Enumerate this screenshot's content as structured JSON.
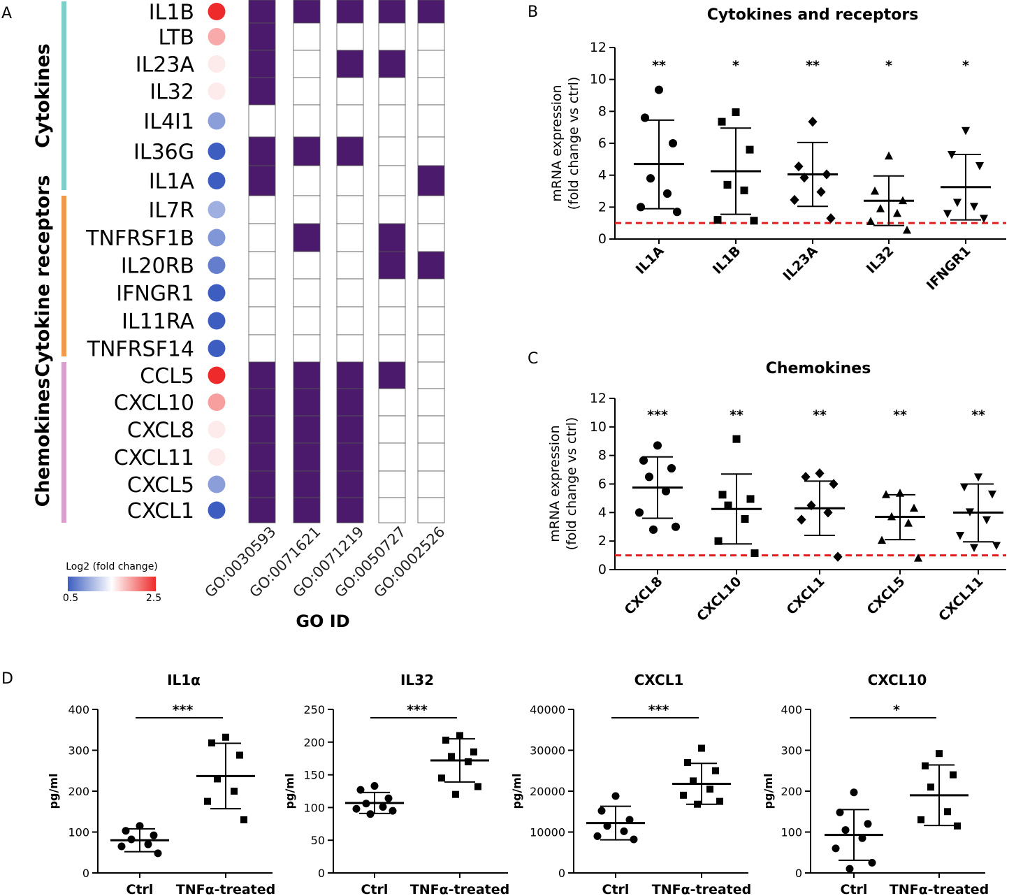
{
  "colors": {
    "purple": "#4b1a6c",
    "cellBorder": "#555555",
    "cytokines": "#7ecfc7",
    "receptors": "#ef9a4e",
    "chemokines": "#da9fcc",
    "low": "#3d5ec0",
    "mid": "#ffffff",
    "high": "#ee2a2a",
    "refline": "#e02020"
  },
  "panelA": {
    "label": "A",
    "categories": [
      {
        "name": "Cytokines",
        "genes": 7
      },
      {
        "name": "Cytokine receptors",
        "genes": 6
      },
      {
        "name": "Chemokines",
        "genes": 6
      }
    ],
    "genes": [
      "IL1B",
      "LTB",
      "IL23A",
      "IL32",
      "IL4I1",
      "IL36G",
      "IL1A",
      "IL7R",
      "TNFRSF1B",
      "IL20RB",
      "IFNGR1",
      "IL11RA",
      "TNFRSF14",
      "CCL5",
      "CXCL10",
      "CXCL8",
      "CXCL11",
      "CXCL5",
      "CXCL1"
    ],
    "log2fc": [
      2.5,
      1.9,
      1.6,
      1.6,
      0.9,
      0.5,
      0.5,
      1.0,
      0.85,
      0.7,
      0.5,
      0.5,
      0.5,
      2.5,
      1.95,
      1.6,
      1.6,
      0.9,
      0.5
    ],
    "go_ids": [
      "GO:0030593",
      "GO:0071621",
      "GO:0071219",
      "GO:0050727",
      "GO:0002526"
    ],
    "matrix": [
      [
        1,
        1,
        1,
        1,
        1
      ],
      [
        1,
        0,
        0,
        0,
        0
      ],
      [
        1,
        0,
        1,
        1,
        0
      ],
      [
        1,
        0,
        0,
        0,
        0
      ],
      [
        0,
        0,
        0,
        0,
        0
      ],
      [
        1,
        1,
        1,
        0,
        0
      ],
      [
        1,
        0,
        0,
        0,
        1
      ],
      [
        0,
        0,
        0,
        0,
        0
      ],
      [
        0,
        1,
        0,
        1,
        0
      ],
      [
        0,
        0,
        0,
        1,
        1
      ],
      [
        0,
        0,
        0,
        0,
        0
      ],
      [
        0,
        0,
        0,
        0,
        0
      ],
      [
        0,
        0,
        0,
        0,
        0
      ],
      [
        1,
        1,
        1,
        1,
        0
      ],
      [
        1,
        1,
        1,
        0,
        0
      ],
      [
        1,
        1,
        1,
        0,
        0
      ],
      [
        1,
        1,
        1,
        0,
        0
      ],
      [
        1,
        1,
        1,
        0,
        0
      ],
      [
        1,
        1,
        1,
        0,
        0
      ]
    ],
    "go_axis_title": "GO ID",
    "legend": {
      "title": "Log2 (fold change)",
      "min_label": "0.5",
      "max_label": "2.5",
      "min": 0.5,
      "max": 2.5
    }
  },
  "chart_data": [
    {
      "id": "B",
      "type": "scatter",
      "title": "Cytokines and receptors",
      "ylabel_line1": "mRNA expression",
      "ylabel_line2": "(fold change vs ctrl)",
      "ylim": [
        0,
        12
      ],
      "yticks": [
        "0",
        "2",
        "4",
        "6",
        "8",
        "10",
        "12"
      ],
      "reference_line": 1,
      "categories": [
        "IL1A",
        "IL1B",
        "IL23A",
        "IL32",
        "IFNGR1"
      ],
      "markers": [
        "circle",
        "square",
        "diamond",
        "triangle-up",
        "triangle-down"
      ],
      "significance": [
        "**",
        "*",
        "**",
        "*",
        "*"
      ],
      "means": [
        4.7,
        4.25,
        4.05,
        2.4,
        3.25
      ],
      "sd_upper": [
        7.45,
        6.95,
        6.05,
        3.95,
        5.3
      ],
      "sd_lower": [
        1.9,
        1.55,
        2.05,
        0.85,
        1.2
      ],
      "points": [
        [
          9.35,
          7.6,
          6.0,
          3.8,
          2.85,
          2.0,
          1.7
        ],
        [
          7.95,
          7.35,
          5.6,
          3.4,
          3.05,
          1.2,
          1.15
        ],
        [
          7.35,
          4.55,
          4.05,
          3.85,
          2.95,
          2.45,
          1.3
        ],
        [
          5.2,
          3.0,
          2.4,
          1.9,
          1.6,
          1.1,
          0.55
        ],
        [
          6.8,
          5.3,
          4.6,
          2.3,
          2.05,
          1.6,
          1.3
        ]
      ]
    },
    {
      "id": "C",
      "type": "scatter",
      "title": "Chemokines",
      "ylabel_line1": "mRNA expression",
      "ylabel_line2": "(fold change vs ctrl)",
      "ylim": [
        0,
        12
      ],
      "yticks": [
        "0",
        "2",
        "4",
        "6",
        "8",
        "10",
        "12"
      ],
      "reference_line": 1,
      "categories": [
        "CXCL8",
        "CXCL10",
        "CXCL1",
        "CXCL5",
        "CXCL11"
      ],
      "markers": [
        "circle",
        "square",
        "diamond",
        "triangle-up",
        "triangle-down"
      ],
      "significance": [
        "***",
        "**",
        "**",
        "**",
        "**"
      ],
      "means": [
        5.75,
        4.25,
        4.3,
        3.7,
        4.0
      ],
      "sd_upper": [
        7.9,
        6.7,
        6.2,
        5.25,
        6.0
      ],
      "sd_lower": [
        3.6,
        1.8,
        2.4,
        2.1,
        1.95
      ],
      "points": [
        [
          8.7,
          7.65,
          7.1,
          6.5,
          5.5,
          4.0,
          3.0,
          2.8
        ],
        [
          9.15,
          5.25,
          4.95,
          4.5,
          3.55,
          2.0,
          1.15
        ],
        [
          6.75,
          6.5,
          6.0,
          4.5,
          4.0,
          3.5,
          0.9
        ],
        [
          5.35,
          5.25,
          4.3,
          3.7,
          3.25,
          2.05,
          0.8
        ],
        [
          6.5,
          5.8,
          5.3,
          4.05,
          3.5,
          2.4,
          1.7,
          1.55
        ]
      ]
    },
    {
      "id": "D1",
      "type": "scatter",
      "title": "IL1α",
      "ylabel": "pg/ml",
      "ylim": [
        0,
        400
      ],
      "yticks": [
        "0",
        "100",
        "200",
        "300",
        "400"
      ],
      "categories": [
        "Ctrl",
        "TNFα-treated"
      ],
      "markers": [
        "circle",
        "square"
      ],
      "significance": "***",
      "means": [
        80,
        237
      ],
      "sd_upper": [
        108,
        317
      ],
      "sd_lower": [
        52,
        157
      ],
      "points": [
        [
          115,
          103,
          92,
          82,
          70,
          65,
          48
        ],
        [
          332,
          318,
          288,
          230,
          200,
          175,
          130
        ]
      ]
    },
    {
      "id": "D2",
      "type": "scatter",
      "title": "IL32",
      "ylabel": "pg/ml",
      "ylim": [
        0,
        250
      ],
      "yticks": [
        "0",
        "50",
        "100",
        "150",
        "200",
        "250"
      ],
      "categories": [
        "Ctrl",
        "TNFα-treated"
      ],
      "markers": [
        "circle",
        "square"
      ],
      "significance": "***",
      "means": [
        107,
        172
      ],
      "sd_upper": [
        123,
        205
      ],
      "sd_lower": [
        91,
        139
      ],
      "points": [
        [
          133,
          127,
          114,
          106,
          101,
          98,
          95,
          90
        ],
        [
          210,
          203,
          185,
          178,
          170,
          145,
          132,
          120
        ]
      ]
    },
    {
      "id": "D3",
      "type": "scatter",
      "title": "CXCL1",
      "ylabel": "pg/ml",
      "ylim": [
        0,
        40000
      ],
      "yticks": [
        "0",
        "10000",
        "20000",
        "30000",
        "40000"
      ],
      "categories": [
        "Ctrl",
        "TNFα-treated"
      ],
      "markers": [
        "circle",
        "square"
      ],
      "significance": "***",
      "means": [
        12200,
        21800
      ],
      "sd_upper": [
        16300,
        26800
      ],
      "sd_lower": [
        8100,
        16800
      ],
      "points": [
        [
          18800,
          15200,
          13000,
          11500,
          10200,
          9000,
          8200
        ],
        [
          30500,
          27000,
          25000,
          22500,
          20500,
          19000,
          17500,
          16800
        ]
      ]
    },
    {
      "id": "D4",
      "type": "scatter",
      "title": "CXCL10",
      "ylabel": "pg/ml",
      "ylim": [
        0,
        400
      ],
      "yticks": [
        "0",
        "100",
        "200",
        "300",
        "400"
      ],
      "categories": [
        "Ctrl",
        "TNFα-treated"
      ],
      "markers": [
        "circle",
        "square"
      ],
      "significance": "*",
      "means": [
        93,
        190
      ],
      "sd_upper": [
        155,
        264
      ],
      "sd_lower": [
        31,
        116
      ],
      "points": [
        [
          197,
          148,
          120,
          105,
          85,
          60,
          25,
          10
        ],
        [
          292,
          262,
          240,
          210,
          150,
          130,
          115
        ]
      ]
    }
  ],
  "panel_labels": {
    "B": "B",
    "C": "C",
    "D": "D"
  }
}
